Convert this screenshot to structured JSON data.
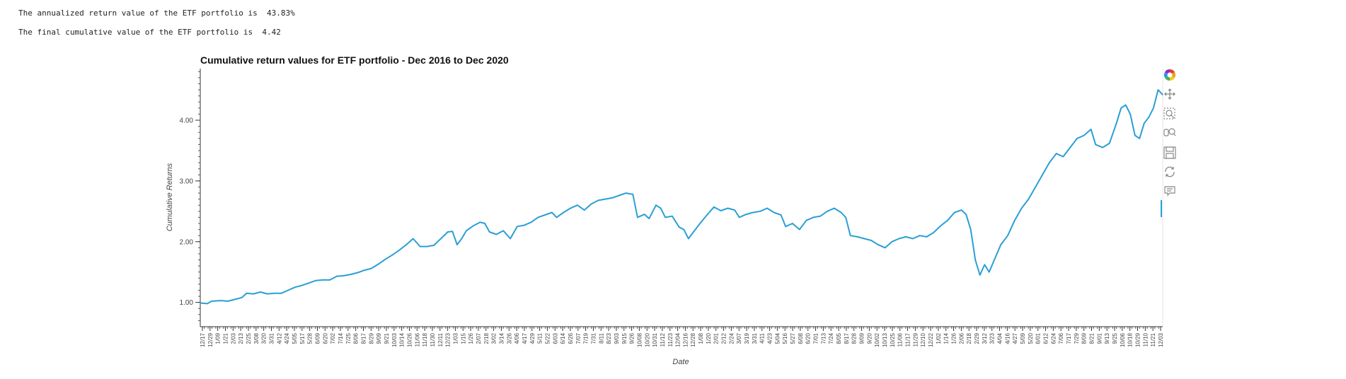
{
  "output": {
    "annualized_line": "The annualized return value of the ETF portfolio is  43.83%",
    "final_line": "The final cumulative value of the ETF portfolio is  4.42"
  },
  "toolbar": {
    "items": [
      "bokeh-logo-icon",
      "pan-icon",
      "box-zoom-icon",
      "wheel-zoom-icon",
      "save-icon",
      "reset-icon",
      "hover-icon"
    ]
  },
  "colors": {
    "line": "#2a9fd6"
  },
  "chart_data": {
    "type": "line",
    "title": "Cumulative return values for ETF portfolio - Dec 2016 to Dec 2020",
    "xlabel": "Date",
    "ylabel": "Cumulative Returns",
    "yticks": [
      "1.00",
      "2.00",
      "3.00",
      "4.00"
    ],
    "ylim": [
      0.6,
      4.85
    ],
    "grid": false,
    "xticks": [
      "12/17",
      "12/29",
      "1/09",
      "1/21",
      "2/03",
      "2/13",
      "2/25",
      "3/08",
      "3/20",
      "3/31",
      "4/12",
      "4/24",
      "5/05",
      "5/17",
      "5/28",
      "6/09",
      "6/20",
      "7/02",
      "7/14",
      "7/25",
      "8/06",
      "8/17",
      "8/29",
      "9/09",
      "9/21",
      "10/03",
      "10/14",
      "10/26",
      "11/06",
      "11/18",
      "11/30",
      "12/11",
      "12/23",
      "1/03",
      "1/15",
      "1/26",
      "2/07",
      "2/18",
      "3/02",
      "3/14",
      "3/26",
      "4/06",
      "4/17",
      "4/29",
      "5/11",
      "5/22",
      "6/03",
      "6/14",
      "6/26",
      "7/07",
      "7/19",
      "7/31",
      "8/11",
      "8/23",
      "9/03",
      "9/15",
      "9/26",
      "10/08",
      "10/20",
      "10/31",
      "11/12",
      "11/23",
      "12/04",
      "12/16",
      "12/28",
      "1/08",
      "1/20",
      "2/01",
      "2/12",
      "2/24",
      "3/07",
      "3/19",
      "3/31",
      "4/11",
      "4/23",
      "5/04",
      "5/16",
      "5/27",
      "6/08",
      "6/20",
      "7/01",
      "7/13",
      "7/24",
      "8/05",
      "8/17",
      "8/28",
      "9/09",
      "9/20",
      "10/02",
      "10/13",
      "10/25",
      "11/06",
      "11/17",
      "11/29",
      "12/10",
      "12/22",
      "1/02",
      "1/14",
      "1/26",
      "2/06",
      "2/18",
      "2/29",
      "3/12",
      "3/23",
      "4/04",
      "4/16",
      "4/27",
      "5/09",
      "5/20",
      "6/01",
      "6/12",
      "6/24",
      "7/06",
      "7/17",
      "7/29",
      "8/09",
      "8/21",
      "9/01",
      "9/13",
      "9/25",
      "10/06",
      "10/18",
      "10/29",
      "11/10",
      "11/21",
      "12/03"
    ],
    "series": [
      {
        "points": [
          [
            0,
            0.99
          ],
          [
            3,
            0.98
          ],
          [
            5,
            1.02
          ],
          [
            9,
            1.03
          ],
          [
            12,
            1.02
          ],
          [
            15,
            1.05
          ],
          [
            18,
            1.08
          ],
          [
            20,
            1.15
          ],
          [
            23,
            1.14
          ],
          [
            26,
            1.17
          ],
          [
            29,
            1.14
          ],
          [
            32,
            1.15
          ],
          [
            35,
            1.15
          ],
          [
            38,
            1.2
          ],
          [
            41,
            1.25
          ],
          [
            44,
            1.28
          ],
          [
            47,
            1.32
          ],
          [
            50,
            1.36
          ],
          [
            53,
            1.37
          ],
          [
            56,
            1.37
          ],
          [
            59,
            1.43
          ],
          [
            62,
            1.44
          ],
          [
            65,
            1.46
          ],
          [
            68,
            1.49
          ],
          [
            71,
            1.53
          ],
          [
            74,
            1.56
          ],
          [
            77,
            1.63
          ],
          [
            80,
            1.71
          ],
          [
            83,
            1.78
          ],
          [
            86,
            1.86
          ],
          [
            89,
            1.95
          ],
          [
            92,
            2.05
          ],
          [
            95,
            1.92
          ],
          [
            98,
            1.92
          ],
          [
            101,
            1.94
          ],
          [
            104,
            2.05
          ],
          [
            107,
            2.16
          ],
          [
            109,
            2.17
          ],
          [
            111,
            1.95
          ],
          [
            113,
            2.05
          ],
          [
            115,
            2.18
          ],
          [
            118,
            2.26
          ],
          [
            121,
            2.32
          ],
          [
            123,
            2.3
          ],
          [
            125,
            2.16
          ],
          [
            128,
            2.12
          ],
          [
            131,
            2.18
          ],
          [
            134,
            2.05
          ],
          [
            137,
            2.25
          ],
          [
            140,
            2.27
          ],
          [
            143,
            2.32
          ],
          [
            146,
            2.4
          ],
          [
            149,
            2.44
          ],
          [
            152,
            2.48
          ],
          [
            154,
            2.4
          ],
          [
            157,
            2.48
          ],
          [
            160,
            2.55
          ],
          [
            163,
            2.6
          ],
          [
            166,
            2.52
          ],
          [
            169,
            2.62
          ],
          [
            172,
            2.68
          ],
          [
            175,
            2.7
          ],
          [
            178,
            2.72
          ],
          [
            181,
            2.76
          ],
          [
            184,
            2.8
          ],
          [
            187,
            2.78
          ],
          [
            189,
            2.4
          ],
          [
            192,
            2.45
          ],
          [
            194,
            2.38
          ],
          [
            197,
            2.6
          ],
          [
            199,
            2.55
          ],
          [
            201,
            2.4
          ],
          [
            204,
            2.42
          ],
          [
            207,
            2.24
          ],
          [
            209,
            2.2
          ],
          [
            211,
            2.05
          ],
          [
            213,
            2.15
          ],
          [
            216,
            2.3
          ],
          [
            219,
            2.44
          ],
          [
            222,
            2.57
          ],
          [
            225,
            2.51
          ],
          [
            228,
            2.55
          ],
          [
            231,
            2.52
          ],
          [
            233,
            2.4
          ],
          [
            236,
            2.45
          ],
          [
            239,
            2.48
          ],
          [
            242,
            2.5
          ],
          [
            245,
            2.55
          ],
          [
            248,
            2.48
          ],
          [
            251,
            2.44
          ],
          [
            253,
            2.25
          ],
          [
            256,
            2.3
          ],
          [
            259,
            2.2
          ],
          [
            262,
            2.35
          ],
          [
            265,
            2.4
          ],
          [
            268,
            2.42
          ],
          [
            271,
            2.5
          ],
          [
            274,
            2.55
          ],
          [
            277,
            2.48
          ],
          [
            279,
            2.4
          ],
          [
            281,
            2.1
          ],
          [
            284,
            2.08
          ],
          [
            287,
            2.05
          ],
          [
            290,
            2.02
          ],
          [
            293,
            1.95
          ],
          [
            296,
            1.9
          ],
          [
            299,
            2.0
          ],
          [
            302,
            2.05
          ],
          [
            305,
            2.08
          ],
          [
            308,
            2.05
          ],
          [
            311,
            2.1
          ],
          [
            314,
            2.08
          ],
          [
            317,
            2.15
          ],
          [
            320,
            2.26
          ],
          [
            323,
            2.35
          ],
          [
            326,
            2.48
          ],
          [
            329,
            2.52
          ],
          [
            331,
            2.45
          ],
          [
            333,
            2.2
          ],
          [
            335,
            1.7
          ],
          [
            337,
            1.45
          ],
          [
            339,
            1.62
          ],
          [
            341,
            1.5
          ],
          [
            343,
            1.68
          ],
          [
            346,
            1.95
          ],
          [
            349,
            2.1
          ],
          [
            352,
            2.35
          ],
          [
            355,
            2.55
          ],
          [
            358,
            2.7
          ],
          [
            361,
            2.9
          ],
          [
            364,
            3.1
          ],
          [
            367,
            3.3
          ],
          [
            370,
            3.45
          ],
          [
            373,
            3.4
          ],
          [
            376,
            3.55
          ],
          [
            379,
            3.7
          ],
          [
            382,
            3.75
          ],
          [
            385,
            3.85
          ],
          [
            387,
            3.6
          ],
          [
            390,
            3.55
          ],
          [
            393,
            3.62
          ],
          [
            396,
            3.95
          ],
          [
            398,
            4.2
          ],
          [
            400,
            4.25
          ],
          [
            402,
            4.1
          ],
          [
            404,
            3.75
          ],
          [
            406,
            3.7
          ],
          [
            408,
            3.95
          ],
          [
            410,
            4.05
          ],
          [
            412,
            4.2
          ],
          [
            414,
            4.5
          ],
          [
            416,
            4.42
          ]
        ]
      }
    ]
  }
}
